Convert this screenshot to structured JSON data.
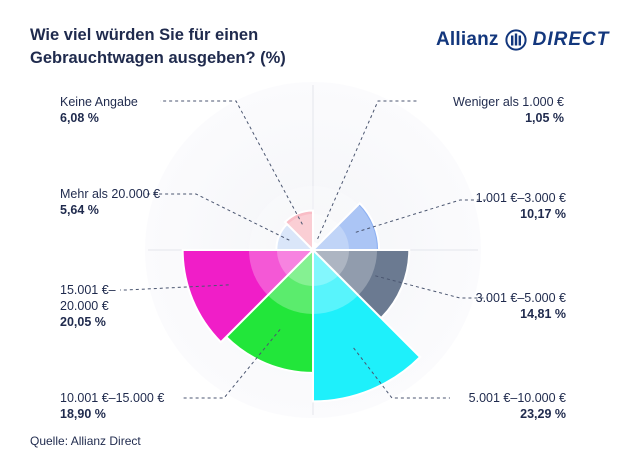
{
  "header": {
    "title": "Wie viel würden Sie für einen Gebrauchtwagen ausgeben? (%)",
    "logo_brand": "Allianz",
    "logo_suffix": "DIRECT"
  },
  "chart_data": {
    "type": "polar-area",
    "title": "Wie viel würden Sie für einen Gebrauchtwagen ausgeben? (%)",
    "unit": "%",
    "categories": [
      "Weniger als 1.000 €",
      "1.001 €–3.000 €",
      "3.001 €–5.000 €",
      "5.001 €–10.000 €",
      "10.001 €–15.000 €",
      "15.001 €–20.000 €",
      "Mehr als 20.000 €",
      "Keine Angabe"
    ],
    "values": [
      1.05,
      10.17,
      14.81,
      23.29,
      18.9,
      20.05,
      5.64,
      6.08
    ],
    "value_labels": [
      "1,05 %",
      "10,17 %",
      "14,81 %",
      "23,29 %",
      "18,90 %",
      "20,05 %",
      "5,64 %",
      "6,08 %"
    ],
    "colors": [
      "#ffffff",
      "#8eb1f2",
      "#6b7a91",
      "#1ef0fb",
      "#22e63a",
      "#f01ec8",
      "#bcd3f5",
      "#f7a6b2"
    ]
  },
  "labels": [
    {
      "name": "Weniger als 1.000 €",
      "value": "1,05 %"
    },
    {
      "name": "1.001 €–3.000 €",
      "value": "10,17 %"
    },
    {
      "name": "3.001 €–5.000 €",
      "value": "14,81 %"
    },
    {
      "name": "5.001 €–10.000 €",
      "value": "23,29 %"
    },
    {
      "name": "10.001 €–15.000 €",
      "value": "18,90 %"
    },
    {
      "name_line1": "15.001 €–",
      "name_line2": "20.000 €",
      "value": "20,05 %"
    },
    {
      "name": "Mehr als 20.000 €",
      "value": "5,64 %"
    },
    {
      "name": "Keine Angabe",
      "value": "6,08 %"
    }
  ],
  "source": "Quelle: Allianz Direct"
}
